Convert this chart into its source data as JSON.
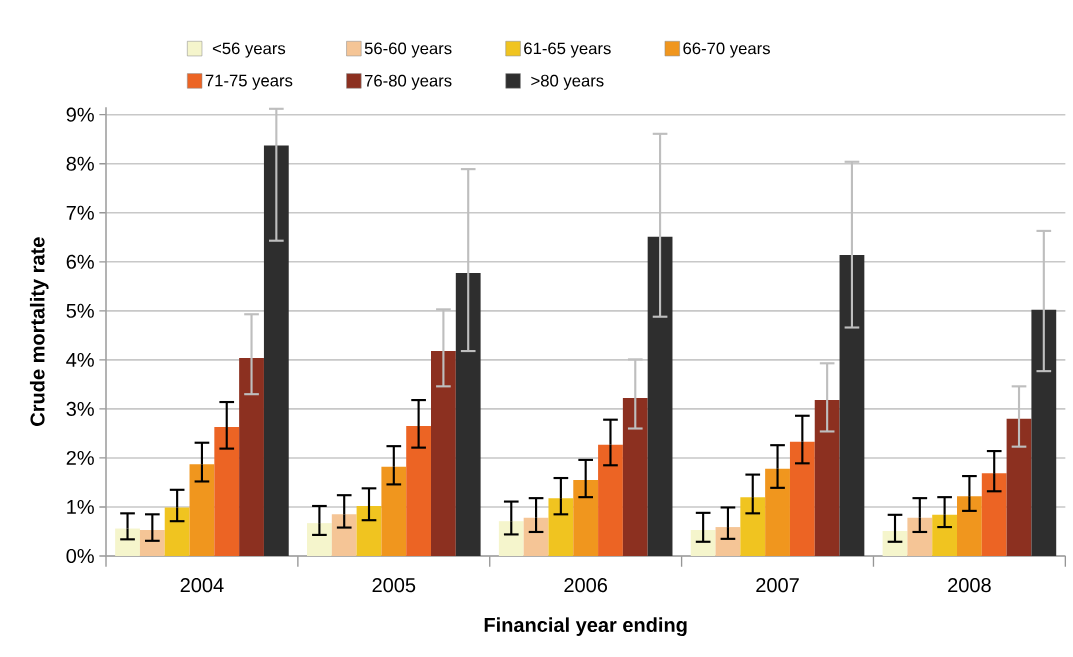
{
  "chart_data": {
    "type": "bar",
    "xlabel": "Financial year ending",
    "ylabel": "Crude mortality rate",
    "categories": [
      "2004",
      "2005",
      "2006",
      "2007",
      "2008"
    ],
    "ylim": [
      0,
      9.15
    ],
    "yticks": [
      {
        "value": 0,
        "label": "0%"
      },
      {
        "value": 1,
        "label": "1%"
      },
      {
        "value": 2,
        "label": "2%"
      },
      {
        "value": 3,
        "label": "3%"
      },
      {
        "value": 4,
        "label": "4%"
      },
      {
        "value": 5,
        "label": "5%"
      },
      {
        "value": 6,
        "label": "6%"
      },
      {
        "value": 7,
        "label": "7%"
      },
      {
        "value": 8,
        "label": "8%"
      },
      {
        "value": 9,
        "label": "9%"
      }
    ],
    "grid": "y",
    "legend": "top",
    "series": [
      {
        "name": "<56 years",
        "color": "#f5f5cc",
        "values": [
          0.56,
          0.67,
          0.71,
          0.53,
          0.51
        ],
        "errors": [
          [
            0.34,
            0.87
          ],
          [
            0.43,
            1.02
          ],
          [
            0.44,
            1.11
          ],
          [
            0.29,
            0.88
          ],
          [
            0.29,
            0.84
          ]
        ]
      },
      {
        "name": "56-60 years",
        "color": "#f5c596",
        "values": [
          0.53,
          0.85,
          0.78,
          0.59,
          0.78
        ],
        "errors": [
          [
            0.31,
            0.85
          ],
          [
            0.58,
            1.24
          ],
          [
            0.49,
            1.18
          ],
          [
            0.35,
            0.99
          ],
          [
            0.49,
            1.18
          ]
        ]
      },
      {
        "name": "61-65 years",
        "color": "#f0c420",
        "values": [
          0.99,
          1.02,
          1.18,
          1.2,
          0.84
        ],
        "errors": [
          [
            0.71,
            1.35
          ],
          [
            0.73,
            1.38
          ],
          [
            0.85,
            1.59
          ],
          [
            0.87,
            1.66
          ],
          [
            0.59,
            1.2
          ]
        ]
      },
      {
        "name": "66-70 years",
        "color": "#f0961e",
        "values": [
          1.87,
          1.82,
          1.55,
          1.78,
          1.22
        ],
        "errors": [
          [
            1.52,
            2.31
          ],
          [
            1.46,
            2.24
          ],
          [
            1.2,
            1.96
          ],
          [
            1.39,
            2.26
          ],
          [
            0.92,
            1.63
          ]
        ]
      },
      {
        "name": "71-75 years",
        "color": "#ec6424",
        "values": [
          2.63,
          2.65,
          2.27,
          2.33,
          1.69
        ],
        "errors": [
          [
            2.19,
            3.14
          ],
          [
            2.21,
            3.18
          ],
          [
            1.85,
            2.78
          ],
          [
            1.89,
            2.86
          ],
          [
            1.32,
            2.14
          ]
        ]
      },
      {
        "name": "76-80 years",
        "color": "#8c3020",
        "values": [
          4.04,
          4.18,
          3.22,
          3.18,
          2.8
        ],
        "errors": [
          [
            3.3,
            4.93
          ],
          [
            3.46,
            5.03
          ],
          [
            2.6,
            4.01
          ],
          [
            2.54,
            3.93
          ],
          [
            2.23,
            3.46
          ]
        ]
      },
      {
        "name": ">80 years",
        "color": "#2e2e2e",
        "values": [
          8.37,
          5.77,
          6.51,
          6.14,
          5.02
        ],
        "errors": [
          [
            6.43,
            9.12
          ],
          [
            4.18,
            7.89
          ],
          [
            4.88,
            8.61
          ],
          [
            4.66,
            8.04
          ],
          [
            3.77,
            6.63
          ]
        ]
      }
    ]
  }
}
